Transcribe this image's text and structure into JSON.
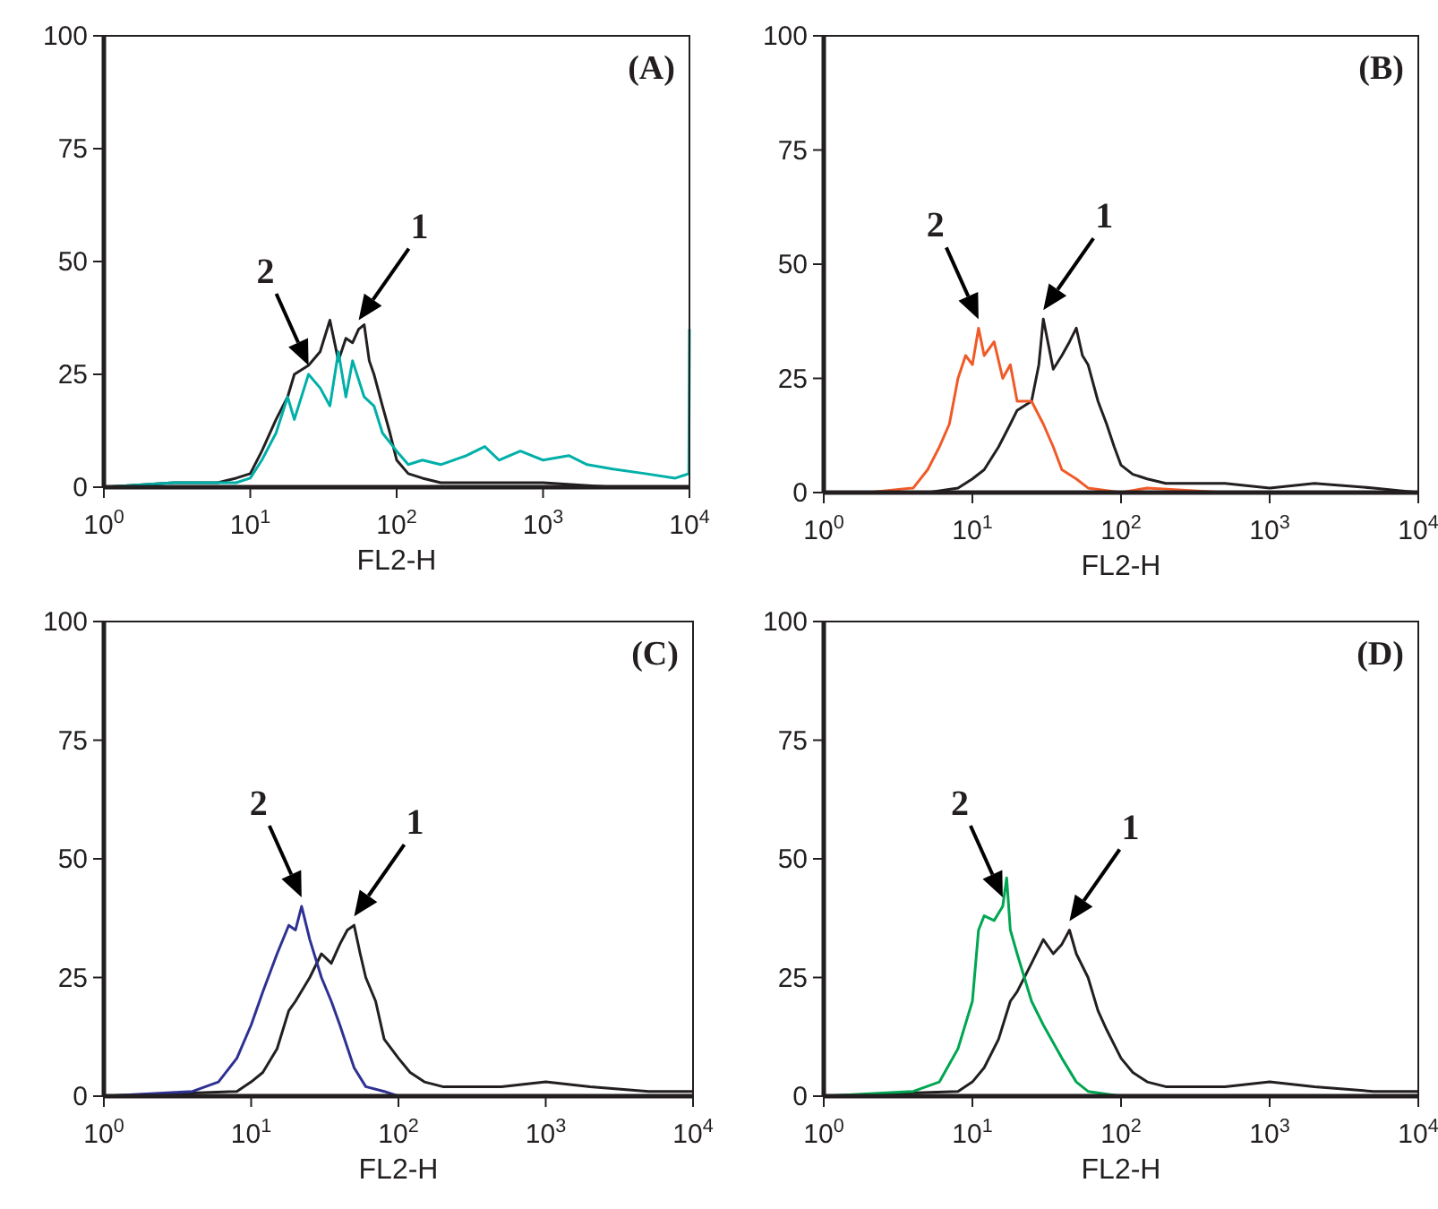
{
  "chart_data": [
    {
      "type": "line",
      "xlabel": "FL2-H",
      "log": "x",
      "xlim": [
        1,
        10000
      ],
      "ylim": [
        0,
        100
      ],
      "xticks": [
        {
          "value": 1,
          "label": "10$^{0}$"
        },
        {
          "value": 10,
          "label": "10$^{1}$"
        },
        {
          "value": 100,
          "label": "10$^{2}$"
        },
        {
          "value": 1000,
          "label": "10$^{3}$"
        },
        {
          "value": 10000,
          "label": "10$^{4}$"
        }
      ],
      "yticks": [
        0,
        25,
        50,
        75,
        100
      ],
      "grid": false,
      "annotations": [
        "(A)",
        {
          "text": "2",
          "x": 25,
          "y": 25
        },
        {
          "text": "1",
          "x": 55,
          "y": 35
        }
      ],
      "series": [
        {
          "color": "#231f20",
          "x": [
            1,
            3,
            6,
            8,
            10,
            12,
            15,
            18,
            20,
            25,
            30,
            35,
            40,
            45,
            50,
            55,
            60,
            65,
            70,
            80,
            90,
            100,
            120,
            150,
            200,
            500,
            1000,
            3000,
            10000
          ],
          "values": [
            0,
            1,
            1,
            2,
            3,
            8,
            15,
            20,
            25,
            27,
            30,
            37,
            28,
            33,
            32,
            35,
            36,
            28,
            25,
            18,
            12,
            6,
            3,
            2,
            1,
            1,
            1,
            0,
            0
          ]
        },
        {
          "color": "#00b0a8",
          "x": [
            1,
            3,
            6,
            8,
            10,
            12,
            15,
            18,
            20,
            25,
            30,
            35,
            40,
            45,
            50,
            60,
            70,
            80,
            100,
            120,
            150,
            200,
            300,
            400,
            500,
            700,
            1000,
            1500,
            2000,
            3000,
            5000,
            8000,
            9900,
            10000
          ],
          "values": [
            0,
            1,
            1,
            1,
            2,
            6,
            12,
            20,
            15,
            25,
            22,
            18,
            30,
            20,
            28,
            20,
            18,
            12,
            8,
            5,
            6,
            5,
            7,
            9,
            6,
            8,
            6,
            7,
            5,
            4,
            3,
            2,
            3,
            35
          ]
        }
      ]
    },
    {
      "type": "line",
      "xlabel": "FL2-H",
      "log": "x",
      "xlim": [
        1,
        10000
      ],
      "ylim": [
        0,
        100
      ],
      "xticks": [
        {
          "value": 1,
          "label": "10$^{0}$"
        },
        {
          "value": 10,
          "label": "10$^{1}$"
        },
        {
          "value": 100,
          "label": "10$^{2}$"
        },
        {
          "value": 1000,
          "label": "10$^{3}$"
        },
        {
          "value": 10000,
          "label": "10$^{4}$"
        }
      ],
      "yticks": [
        0,
        25,
        50,
        75,
        100
      ],
      "grid": false,
      "annotations": [
        "(B)",
        {
          "text": "2",
          "x": 11,
          "y": 36
        },
        {
          "text": "1",
          "x": 30,
          "y": 38
        }
      ],
      "series": [
        {
          "color": "#231f20",
          "x": [
            1,
            5,
            8,
            10,
            12,
            15,
            18,
            20,
            25,
            28,
            30,
            35,
            40,
            45,
            50,
            55,
            60,
            70,
            80,
            90,
            100,
            120,
            150,
            200,
            500,
            1000,
            2000,
            5000,
            10000
          ],
          "values": [
            0,
            0,
            1,
            3,
            5,
            10,
            15,
            18,
            20,
            28,
            38,
            27,
            30,
            33,
            36,
            30,
            28,
            20,
            15,
            10,
            6,
            4,
            3,
            2,
            2,
            1,
            2,
            1,
            0
          ]
        },
        {
          "color": "#f05a28",
          "x": [
            2,
            4,
            5,
            6,
            7,
            8,
            9,
            10,
            11,
            12,
            14,
            16,
            18,
            20,
            25,
            30,
            35,
            40,
            50,
            60,
            100,
            150,
            500,
            10000
          ],
          "values": [
            0,
            1,
            5,
            10,
            15,
            25,
            30,
            28,
            36,
            30,
            33,
            25,
            28,
            20,
            20,
            15,
            10,
            5,
            3,
            1,
            0,
            1,
            0,
            0
          ]
        }
      ]
    },
    {
      "type": "line",
      "xlabel": "FL2-H",
      "log": "x",
      "xlim": [
        1,
        10000
      ],
      "ylim": [
        0,
        100
      ],
      "xticks": [
        {
          "value": 1,
          "label": "10$^{0}$"
        },
        {
          "value": 10,
          "label": "10$^{1}$"
        },
        {
          "value": 100,
          "label": "10$^{2}$"
        },
        {
          "value": 1000,
          "label": "10$^{3}$"
        },
        {
          "value": 10000,
          "label": "10$^{4}$"
        }
      ],
      "yticks": [
        0,
        25,
        50,
        75,
        100
      ],
      "grid": false,
      "annotations": [
        "(C)",
        {
          "text": "2",
          "x": 22,
          "y": 40
        },
        {
          "text": "1",
          "x": 50,
          "y": 36
        }
      ],
      "series": [
        {
          "color": "#231f20",
          "x": [
            1,
            8,
            10,
            12,
            15,
            18,
            20,
            25,
            30,
            35,
            40,
            45,
            50,
            55,
            60,
            70,
            80,
            100,
            120,
            150,
            200,
            500,
            1000,
            2000,
            5000,
            10000
          ],
          "values": [
            0,
            1,
            3,
            5,
            10,
            18,
            20,
            25,
            30,
            28,
            32,
            35,
            36,
            30,
            25,
            20,
            12,
            8,
            5,
            3,
            2,
            2,
            3,
            2,
            1,
            1
          ]
        },
        {
          "color": "#2e3192",
          "x": [
            1,
            4,
            6,
            8,
            10,
            12,
            15,
            18,
            20,
            22,
            25,
            30,
            35,
            40,
            50,
            60,
            80,
            100,
            10000
          ],
          "values": [
            0,
            1,
            3,
            8,
            15,
            22,
            30,
            36,
            35,
            40,
            33,
            25,
            20,
            15,
            6,
            2,
            1,
            0,
            0
          ]
        }
      ]
    },
    {
      "type": "line",
      "xlabel": "FL2-H",
      "log": "x",
      "xlim": [
        1,
        10000
      ],
      "ylim": [
        0,
        100
      ],
      "xticks": [
        {
          "value": 1,
          "label": "10$^{0}$"
        },
        {
          "value": 10,
          "label": "10$^{1}$"
        },
        {
          "value": 100,
          "label": "10$^{2}$"
        },
        {
          "value": 1000,
          "label": "10$^{3}$"
        },
        {
          "value": 10000,
          "label": "10$^{4}$"
        }
      ],
      "yticks": [
        0,
        25,
        50,
        75,
        100
      ],
      "grid": false,
      "annotations": [
        "(D)",
        {
          "text": "2",
          "x": 16,
          "y": 40
        },
        {
          "text": "1",
          "x": 45,
          "y": 35
        }
      ],
      "series": [
        {
          "color": "#231f20",
          "x": [
            1,
            8,
            10,
            12,
            15,
            18,
            20,
            25,
            30,
            35,
            40,
            45,
            50,
            60,
            70,
            80,
            100,
            120,
            150,
            200,
            500,
            1000,
            2000,
            5000,
            10000
          ],
          "values": [
            0,
            1,
            3,
            6,
            12,
            20,
            22,
            28,
            33,
            30,
            32,
            35,
            30,
            25,
            18,
            14,
            8,
            5,
            3,
            2,
            2,
            3,
            2,
            1,
            1
          ]
        },
        {
          "color": "#00a651",
          "x": [
            1,
            4,
            6,
            8,
            10,
            11,
            12,
            14,
            16,
            17,
            18,
            20,
            25,
            30,
            40,
            50,
            60,
            100,
            10000
          ],
          "values": [
            0,
            1,
            3,
            10,
            20,
            35,
            38,
            37,
            40,
            46,
            35,
            30,
            20,
            15,
            8,
            3,
            1,
            0,
            0
          ]
        }
      ]
    }
  ]
}
